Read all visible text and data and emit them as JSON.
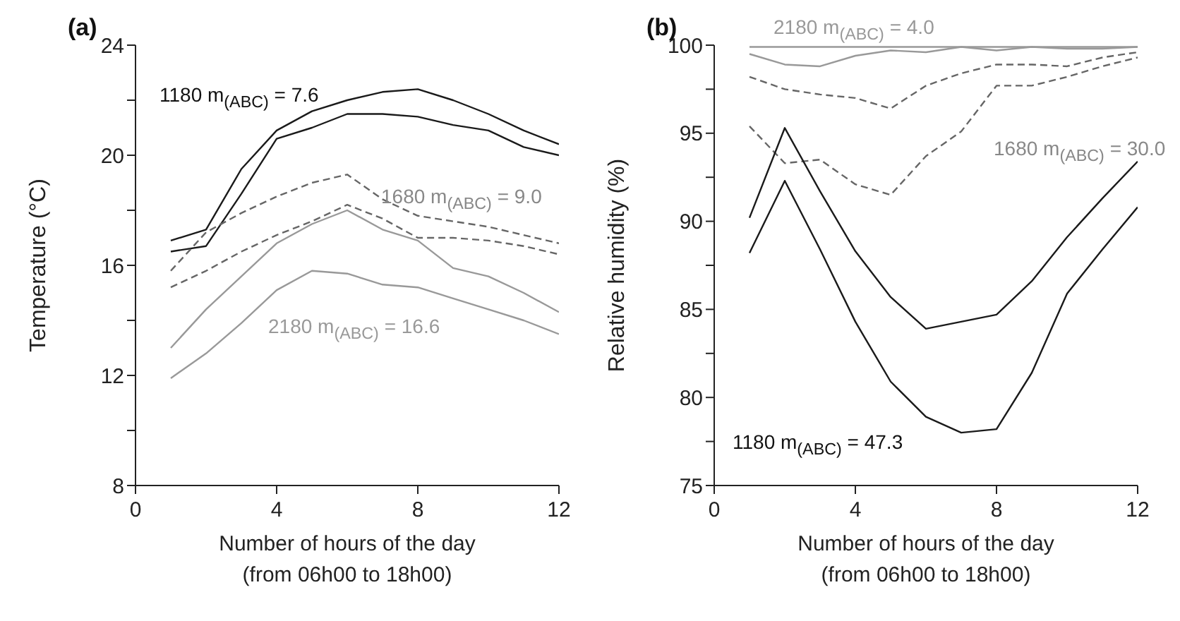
{
  "chart_data": [
    {
      "type": "line",
      "title": "(a)",
      "xlabel": "Number of hours of the day\n(from 06h00 to 18h00)",
      "ylabel": "Temperature (°C)",
      "x": [
        1,
        2,
        3,
        4,
        5,
        6,
        7,
        8,
        9,
        10,
        11,
        12
      ],
      "xlim": [
        0,
        12
      ],
      "xticks": [
        0,
        4,
        8,
        12
      ],
      "ylim": [
        8,
        24
      ],
      "yticks": [
        8,
        {
          "value": 10,
          "label": null
        },
        12,
        {
          "value": 14,
          "label": null
        },
        16,
        {
          "value": 18,
          "label": null
        },
        20,
        {
          "value": 22,
          "label": null
        },
        24
      ],
      "marker": "none",
      "series": [
        {
          "color": "#1a1a1a",
          "line_style": "solid",
          "values": [
            16.9,
            17.3,
            19.5,
            20.9,
            21.6,
            22.0,
            22.3,
            22.4,
            22.0,
            21.5,
            20.9,
            20.4
          ]
        },
        {
          "color": "#1a1a1a",
          "line_style": "solid",
          "values": [
            16.5,
            16.7,
            18.6,
            20.6,
            21.0,
            21.5,
            21.5,
            21.4,
            21.1,
            20.9,
            20.3,
            20.0
          ]
        },
        {
          "color": "#666666",
          "line_style": "dashed",
          "values": [
            15.8,
            17.2,
            17.9,
            18.5,
            19.0,
            19.3,
            18.4,
            17.8,
            17.6,
            17.4,
            17.1,
            16.8
          ]
        },
        {
          "color": "#666666",
          "line_style": "dashed",
          "values": [
            15.2,
            15.8,
            16.5,
            17.1,
            17.6,
            18.2,
            17.7,
            17.0,
            17.0,
            16.9,
            16.7,
            16.4
          ]
        },
        {
          "color": "#999999",
          "line_style": "solid",
          "values": [
            13.0,
            14.4,
            15.6,
            16.8,
            17.5,
            18.0,
            17.3,
            16.9,
            15.9,
            15.6,
            15.0,
            14.3
          ]
        },
        {
          "color": "#999999",
          "line_style": "solid",
          "values": [
            11.9,
            12.8,
            13.9,
            15.1,
            15.8,
            15.7,
            15.3,
            15.2,
            14.8,
            14.4,
            14.0,
            13.5
          ]
        }
      ],
      "annotations": [
        "1180 m$_{(ABC)}$ = 7.6",
        "1680 m$_{(ABC)}$ = 9.0",
        "2180 m$_{(ABC)}$ = 16.6"
      ]
    },
    {
      "type": "line",
      "title": "(b)",
      "xlabel": "Number of hours of the day\n(from 06h00 to 18h00)",
      "ylabel": "Relative humidity (%)",
      "x": [
        1,
        2,
        3,
        4,
        5,
        6,
        7,
        8,
        9,
        10,
        11,
        12
      ],
      "xlim": [
        0,
        12
      ],
      "xticks": [
        0,
        4,
        8,
        12
      ],
      "ylim": [
        75,
        100
      ],
      "yticks": [
        75,
        {
          "value": 77.5,
          "label": null
        },
        80,
        {
          "value": 82.5,
          "label": null
        },
        85,
        {
          "value": 87.5,
          "label": null
        },
        90,
        {
          "value": 92.5,
          "label": null
        },
        95,
        {
          "value": 97.5,
          "label": null
        },
        100
      ],
      "marker": "none",
      "series": [
        {
          "color": "#999999",
          "line_style": "solid",
          "values": [
            99.9,
            99.9,
            99.9,
            99.9,
            99.9,
            99.9,
            99.9,
            99.9,
            99.9,
            99.9,
            99.9,
            99.9
          ]
        },
        {
          "color": "#999999",
          "line_style": "solid",
          "values": [
            99.5,
            98.9,
            98.8,
            99.4,
            99.7,
            99.6,
            99.9,
            99.7,
            99.9,
            99.8,
            99.8,
            99.9
          ]
        },
        {
          "color": "#666666",
          "line_style": "dashed",
          "values": [
            98.2,
            97.5,
            97.2,
            97.0,
            96.4,
            97.7,
            98.4,
            98.9,
            98.9,
            98.8,
            99.3,
            99.6
          ]
        },
        {
          "color": "#666666",
          "line_style": "dashed",
          "values": [
            95.4,
            93.3,
            93.5,
            92.1,
            91.5,
            93.7,
            95.1,
            97.7,
            97.7,
            98.2,
            98.8,
            99.3
          ]
        },
        {
          "color": "#1a1a1a",
          "line_style": "solid",
          "values": [
            90.2,
            95.3,
            91.7,
            88.3,
            85.7,
            83.9,
            84.3,
            84.7,
            86.6,
            89.1,
            91.3,
            93.4
          ]
        },
        {
          "color": "#1a1a1a",
          "line_style": "solid",
          "values": [
            88.2,
            92.3,
            88.4,
            84.3,
            80.9,
            78.9,
            78.0,
            78.2,
            81.4,
            85.9,
            88.4,
            90.8
          ]
        }
      ],
      "annotations": [
        "2180 m$_{(ABC)}$ = 4.0",
        "1680 m$_{(ABC)}$ = 30.0",
        "1180 m$_{(ABC)}$ = 47.3"
      ]
    }
  ]
}
